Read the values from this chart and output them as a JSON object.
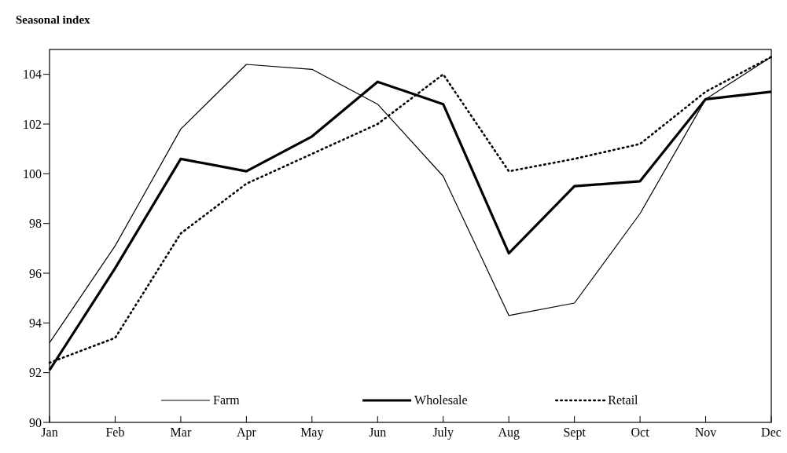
{
  "chart_data": {
    "type": "line",
    "ylabel": "Seasonal index",
    "categories": [
      "Jan",
      "Feb",
      "Mar",
      "Apr",
      "May",
      "Jun",
      "July",
      "Aug",
      "Sept",
      "Oct",
      "Nov",
      "Dec"
    ],
    "series": [
      {
        "name": "Farm",
        "color": "#000000",
        "line_style": "solid",
        "values": [
          93.2,
          97.1,
          101.8,
          104.4,
          104.2,
          102.8,
          99.9,
          94.3,
          94.8,
          98.4,
          103.0,
          104.7
        ]
      },
      {
        "name": "Wholesale",
        "color": "#000000",
        "line_style": "solid",
        "values": [
          92.1,
          96.2,
          100.6,
          100.1,
          101.5,
          103.7,
          102.8,
          96.8,
          99.5,
          99.7,
          103.0,
          103.3
        ]
      },
      {
        "name": "Retail",
        "color": "#000000",
        "line_style": "dotted",
        "values": [
          92.4,
          93.4,
          97.6,
          99.6,
          100.8,
          102.0,
          104.0,
          100.1,
          100.6,
          101.2,
          103.3,
          104.7
        ]
      }
    ],
    "ylim": [
      90,
      105
    ],
    "yticks": [
      90,
      92,
      94,
      96,
      98,
      100,
      102,
      104
    ],
    "grid": false,
    "legend": "bottom"
  }
}
